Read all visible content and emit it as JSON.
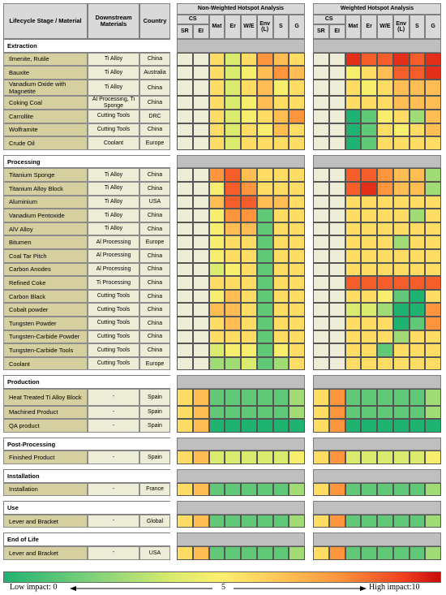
{
  "headers": {
    "lifecycle": "Lifecycle Stage / Material",
    "downstream": "Downstream Materials",
    "country": "Country",
    "non_weighted": "Non-Weighted Hotspot Analysis",
    "weighted": "Weighted Hotspot Analysis",
    "cs": "CS",
    "sr": "SR",
    "ei": "EI",
    "mat": "Mat",
    "er": "Er",
    "we": "W/E",
    "env": "Env (L)",
    "s": "S",
    "g": "G"
  },
  "colorbar": {
    "low": "Low impact: 0",
    "mid": "5",
    "high": "High impact:10",
    "colors": [
      "#1fb371",
      "#7dd17a",
      "#d7ea6d",
      "#ffef6e",
      "#ffc95a",
      "#ff8f3a",
      "#ef3c1f",
      "#c80c0c"
    ]
  },
  "chart_data": {
    "type": "heatmap",
    "scale": [
      0,
      10
    ],
    "columns": [
      "SR",
      "EI",
      "Mat",
      "Er",
      "W/E",
      "Env (L)",
      "S",
      "G"
    ],
    "sections": [
      {
        "name": "Extraction",
        "rows": [
          {
            "material": "Ilmenite, Rutile",
            "downstream": "Ti Alloy",
            "country": "China",
            "nw": [
              null,
              null,
              5,
              3,
              5,
              7,
              6,
              5
            ],
            "w": [
              null,
              null,
              9,
              8,
              8,
              9,
              8,
              9
            ]
          },
          {
            "material": "Bauxite",
            "downstream": "Ti Alloy",
            "country": "Australia",
            "nw": [
              null,
              null,
              5,
              3,
              4,
              6,
              7,
              6
            ],
            "w": [
              null,
              null,
              4,
              5,
              6,
              8,
              8,
              9
            ]
          },
          {
            "material": "Vanadium Oxide with Magnetite",
            "downstream": "Ti Alloy",
            "country": "China",
            "nw": [
              null,
              null,
              5,
              3,
              5,
              6,
              4,
              5
            ],
            "w": [
              null,
              null,
              5,
              4,
              5,
              6,
              6,
              6
            ]
          },
          {
            "material": "Coking Coal",
            "downstream": "Al Processing, Ti Sponge",
            "country": "China",
            "nw": [
              null,
              null,
              5,
              3,
              4,
              6,
              5,
              5
            ],
            "w": [
              null,
              null,
              5,
              5,
              5,
              6,
              6,
              6
            ]
          },
          {
            "material": "Carrollite",
            "downstream": "Cutting Tools",
            "country": "DRC",
            "nw": [
              null,
              null,
              5,
              3,
              4,
              5,
              6,
              7
            ],
            "w": [
              null,
              null,
              0,
              1,
              4,
              5,
              2,
              6
            ]
          },
          {
            "material": "Wolframite",
            "downstream": "Cutting Tools",
            "country": "China",
            "nw": [
              null,
              null,
              5,
              3,
              5,
              4,
              6,
              5
            ],
            "w": [
              null,
              null,
              0,
              1,
              5,
              4,
              5,
              6
            ]
          },
          {
            "material": "Crude Oil",
            "downstream": "Coolant",
            "country": "Europe",
            "nw": [
              null,
              null,
              5,
              3,
              5,
              5,
              5,
              5
            ],
            "w": [
              null,
              null,
              0,
              1,
              5,
              5,
              5,
              5
            ]
          }
        ]
      },
      {
        "name": "Processing",
        "rows": [
          {
            "material": "Titanium Sponge",
            "downstream": "Ti Alloy",
            "country": "China",
            "nw": [
              null,
              null,
              7,
              8,
              6,
              5,
              5,
              5
            ],
            "w": [
              null,
              null,
              8,
              8,
              7,
              6,
              6,
              2
            ]
          },
          {
            "material": "Titanium Alloy Block",
            "downstream": "Ti Alloy",
            "country": "China",
            "nw": [
              null,
              null,
              4,
              8,
              7,
              5,
              5,
              5
            ],
            "w": [
              null,
              null,
              8,
              9,
              7,
              6,
              6,
              2
            ]
          },
          {
            "material": "Aluminium",
            "downstream": "Ti Alloy",
            "country": "USA",
            "nw": [
              null,
              null,
              6,
              8,
              8,
              6,
              6,
              5
            ],
            "w": [
              null,
              null,
              5,
              5,
              5,
              5,
              5,
              5
            ]
          },
          {
            "material": "Vanadium Pentoxide",
            "downstream": "Ti Alloy",
            "country": "China",
            "nw": [
              null,
              null,
              4,
              7,
              7,
              1,
              5,
              5
            ],
            "w": [
              null,
              null,
              5,
              5,
              5,
              5,
              2,
              5
            ]
          },
          {
            "material": "AlV Alloy",
            "downstream": "Ti Alloy",
            "country": "China",
            "nw": [
              null,
              null,
              4,
              6,
              6,
              1,
              5,
              5
            ],
            "w": [
              null,
              null,
              5,
              5,
              5,
              5,
              5,
              5
            ]
          },
          {
            "material": "Bitumen",
            "downstream": "Al Processing",
            "country": "Europe",
            "nw": [
              null,
              null,
              4,
              5,
              5,
              1,
              5,
              5
            ],
            "w": [
              null,
              null,
              5,
              5,
              5,
              2,
              5,
              5
            ]
          },
          {
            "material": "Coal Tar Pitch",
            "downstream": "Al Processing",
            "country": "China",
            "nw": [
              null,
              null,
              4,
              5,
              5,
              1,
              5,
              5
            ],
            "w": [
              null,
              null,
              5,
              5,
              5,
              5,
              5,
              5
            ]
          },
          {
            "material": "Carbon Anodes",
            "downstream": "Al Processing",
            "country": "China",
            "nw": [
              null,
              null,
              3,
              4,
              5,
              1,
              5,
              5
            ],
            "w": [
              null,
              null,
              5,
              5,
              5,
              5,
              5,
              5
            ]
          },
          {
            "material": "Refined Coke",
            "downstream": "Ti  Processing",
            "country": "China",
            "nw": [
              null,
              null,
              5,
              5,
              5,
              1,
              5,
              5
            ],
            "w": [
              null,
              null,
              8,
              8,
              8,
              8,
              8,
              8
            ]
          },
          {
            "material": "Carbon Black",
            "downstream": "Cutting Tools",
            "country": "China",
            "nw": [
              null,
              null,
              4,
              6,
              5,
              1,
              5,
              5
            ],
            "w": [
              null,
              null,
              5,
              5,
              4,
              1,
              0,
              5
            ]
          },
          {
            "material": "Cobalt powder",
            "downstream": "Cutting Tools",
            "country": "China",
            "nw": [
              null,
              null,
              6,
              6,
              5,
              1,
              5,
              5
            ],
            "w": [
              null,
              null,
              3,
              3,
              2,
              0,
              0,
              7
            ]
          },
          {
            "material": "Tungsten Powder",
            "downstream": "Cutting Tools",
            "country": "China",
            "nw": [
              null,
              null,
              5,
              6,
              5,
              1,
              5,
              5
            ],
            "w": [
              null,
              null,
              5,
              5,
              5,
              0,
              1,
              7
            ]
          },
          {
            "material": "Tungsten-Carbide Powder",
            "downstream": "Cutting Tools",
            "country": "China",
            "nw": [
              null,
              null,
              5,
              5,
              5,
              1,
              5,
              5
            ],
            "w": [
              null,
              null,
              5,
              5,
              5,
              2,
              5,
              5
            ]
          },
          {
            "material": "Tungsten-Carbide Tools",
            "downstream": "Cutting Tools",
            "country": "China",
            "nw": [
              null,
              null,
              3,
              4,
              4,
              1,
              4,
              5
            ],
            "w": [
              null,
              null,
              5,
              5,
              1,
              5,
              5,
              5
            ]
          },
          {
            "material": "Coolant",
            "downstream": "Cutting Tools",
            "country": "Europe",
            "nw": [
              null,
              null,
              2,
              2,
              3,
              1,
              2,
              5
            ],
            "w": [
              null,
              null,
              5,
              5,
              5,
              5,
              5,
              5
            ]
          }
        ]
      },
      {
        "name": "Production",
        "rows": [
          {
            "material": "Heat Treated Ti Alloy Block",
            "downstream": "-",
            "country": "Spain",
            "nw": [
              5,
              6,
              1,
              1,
              1,
              1,
              1,
              2
            ],
            "w": [
              5,
              7,
              1,
              1,
              1,
              1,
              1,
              2
            ]
          },
          {
            "material": "Machined Product",
            "downstream": "-",
            "country": "Spain",
            "nw": [
              5,
              6,
              1,
              1,
              1,
              1,
              1,
              2
            ],
            "w": [
              5,
              7,
              1,
              1,
              1,
              1,
              1,
              2
            ]
          },
          {
            "material": "QA product",
            "downstream": "-",
            "country": "Spain",
            "nw": [
              5,
              6,
              0,
              0,
              0,
              0,
              0,
              0
            ],
            "w": [
              5,
              7,
              0,
              0,
              0,
              0,
              0,
              0
            ]
          }
        ]
      },
      {
        "name": "Post-Processing",
        "rows": [
          {
            "material": "Finished Product",
            "downstream": "-",
            "country": "Spain",
            "nw": [
              5,
              6,
              3,
              3,
              3,
              3,
              3,
              4
            ],
            "w": [
              5,
              7,
              3,
              3,
              3,
              3,
              3,
              4
            ]
          }
        ]
      },
      {
        "name": "Installation",
        "rows": [
          {
            "material": "Installation",
            "downstream": "-",
            "country": "France",
            "nw": [
              5,
              6,
              1,
              1,
              1,
              1,
              1,
              2
            ],
            "w": [
              5,
              7,
              1,
              1,
              1,
              1,
              1,
              2
            ]
          }
        ]
      },
      {
        "name": "Use",
        "rows": [
          {
            "material": "Lever and Bracket",
            "downstream": "-",
            "country": "Global",
            "nw": [
              5,
              6,
              1,
              1,
              1,
              1,
              1,
              2
            ],
            "w": [
              5,
              7,
              1,
              1,
              1,
              1,
              1,
              2
            ]
          }
        ]
      },
      {
        "name": "End of Life",
        "rows": [
          {
            "material": "Lever and Bracket",
            "downstream": "-",
            "country": "USA",
            "nw": [
              5,
              6,
              1,
              1,
              1,
              1,
              1,
              2
            ],
            "w": [
              5,
              7,
              1,
              1,
              1,
              1,
              1,
              2
            ]
          }
        ]
      }
    ]
  }
}
